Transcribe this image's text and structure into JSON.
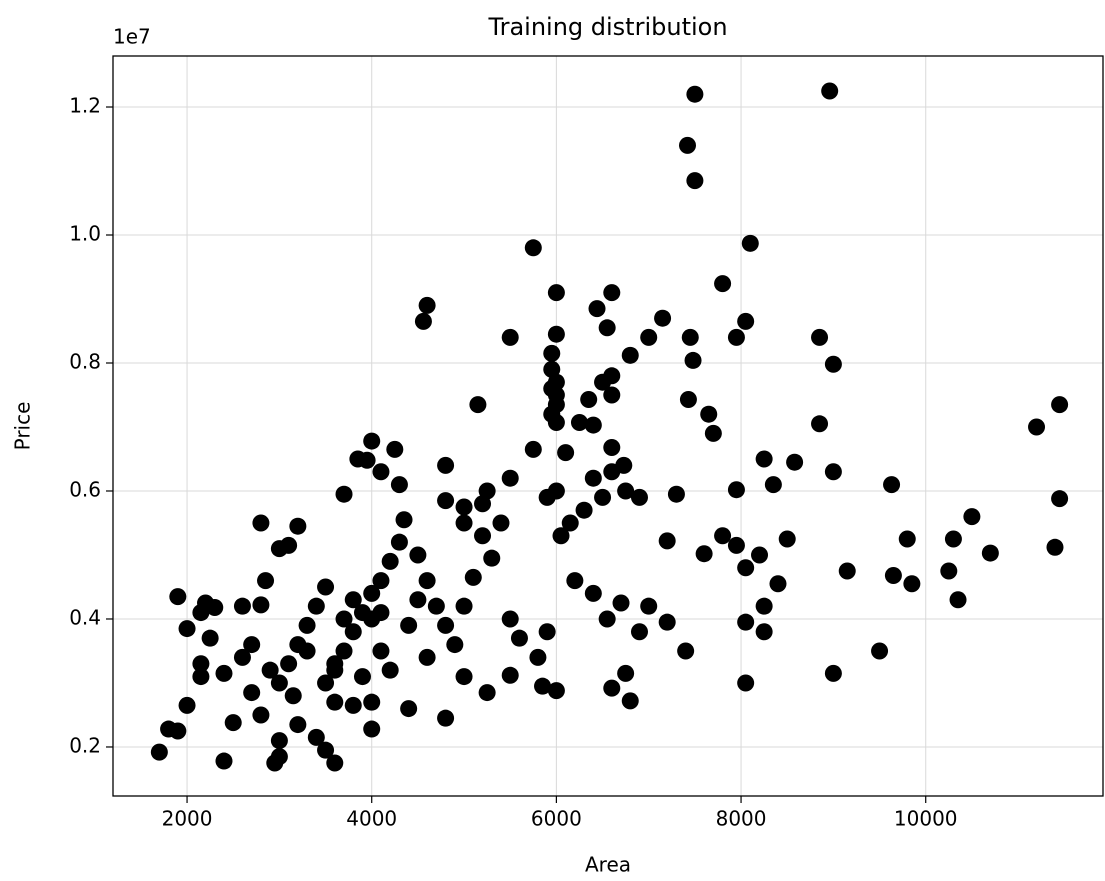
{
  "chart_data": {
    "type": "scatter",
    "title": "Training distribution",
    "x_label": "Area",
    "y_label": "Price",
    "y_offset_label": "1e7",
    "color": "#000000",
    "grid": true,
    "xlim": [
      1198,
      11920
    ],
    "ylim": [
      1234000,
      12797000
    ],
    "xticks": [
      2000,
      4000,
      6000,
      8000,
      10000
    ],
    "yticks": [
      {
        "value": 2000000,
        "label": "0.2"
      },
      {
        "value": 4000000,
        "label": "0.4"
      },
      {
        "value": 6000000,
        "label": "0.6"
      },
      {
        "value": 8000000,
        "label": "0.8"
      },
      {
        "value": 10000000,
        "label": "1.0"
      },
      {
        "value": 12000000,
        "label": "1.2"
      }
    ],
    "x": [
      7500,
      8960,
      7420,
      7500,
      5750,
      8100,
      7800,
      6000,
      6600,
      4600,
      4560,
      6440,
      6550,
      7150,
      8050,
      5500,
      6000,
      7000,
      7450,
      7950,
      8850,
      6800,
      5950,
      7480,
      9000,
      5950,
      6500,
      6600,
      6000,
      5950,
      6000,
      6600,
      6350,
      7430,
      5150,
      6000,
      11450,
      5950,
      7650,
      6000,
      6250,
      8850,
      6400,
      11200,
      7700,
      4000,
      3850,
      3950,
      4250,
      5750,
      6600,
      6100,
      8250,
      8580,
      6730,
      4800,
      4100,
      9000,
      4300,
      8350,
      9630,
      3700,
      6000,
      6750,
      7950,
      5500,
      6400,
      6600,
      5250,
      11450,
      4800,
      5000,
      5200,
      7300,
      6900,
      4350,
      2800,
      3200,
      3100,
      3000,
      7200,
      8500,
      9800,
      10300,
      10500,
      11400,
      10700,
      7600,
      7800,
      8200,
      8050,
      9000,
      9500,
      9150,
      9650,
      9850,
      10250,
      10350,
      8050,
      8050,
      8250,
      8250,
      8400,
      7950,
      7400,
      6800,
      6600,
      6750,
      6000,
      5850,
      7000,
      7200,
      6900,
      6550,
      6700,
      6400,
      6200,
      5500,
      5250,
      5000,
      4800,
      4400,
      4000,
      3600,
      3500,
      3000,
      2950,
      2400,
      1700,
      1800,
      1900,
      2000,
      2500,
      1900,
      2000,
      2150,
      2200,
      2300,
      2150,
      2150,
      2250,
      2600,
      2800,
      2850,
      2400,
      2600,
      2700,
      2800,
      3000,
      3200,
      3400,
      3600,
      3800,
      4000,
      3000,
      3100,
      3200,
      3300,
      3400,
      3500,
      3600,
      3700,
      3800,
      3900,
      4000,
      4100,
      4200,
      4300,
      4500,
      4600,
      4700,
      4800,
      4900,
      5000,
      5100,
      5300,
      5400,
      5500,
      5600,
      5800,
      5900,
      6050,
      6150,
      6300,
      6500,
      3500,
      3600,
      3700,
      3800,
      3900,
      4100,
      4200,
      4400,
      4500,
      4600,
      2900,
      3150,
      3300,
      2700,
      4000,
      4100,
      5900,
      5000,
      5200
    ],
    "y": [
      12200000,
      12250000,
      11400000,
      10850000,
      9800000,
      9870000,
      9240000,
      9100000,
      9100000,
      8900000,
      8650000,
      8850000,
      8550000,
      8700000,
      8650000,
      8400000,
      8450000,
      8400000,
      8400000,
      8400000,
      8400000,
      8120000,
      8150000,
      8040000,
      7980000,
      7900000,
      7700000,
      7800000,
      7700000,
      7600000,
      7500000,
      7500000,
      7430000,
      7430000,
      7350000,
      7350000,
      7350000,
      7200000,
      7200000,
      7070000,
      7070000,
      7050000,
      7030000,
      7000000,
      6900000,
      6780000,
      6500000,
      6480000,
      6650000,
      6650000,
      6680000,
      6600000,
      6500000,
      6450000,
      6400000,
      6400000,
      6300000,
      6300000,
      6100000,
      6100000,
      6100000,
      5950000,
      6000000,
      6000000,
      6020000,
      6200000,
      6200000,
      6300000,
      6000000,
      5880000,
      5850000,
      5750000,
      5800000,
      5950000,
      5900000,
      5550000,
      5500000,
      5450000,
      5150000,
      5100000,
      5220000,
      5250000,
      5250000,
      5250000,
      5600000,
      5120000,
      5030000,
      5020000,
      5300000,
      5000000,
      4800000,
      3150000,
      3500000,
      4750000,
      4680000,
      4550000,
      4750000,
      4300000,
      3000000,
      3950000,
      3800000,
      4200000,
      4550000,
      5150000,
      3500000,
      2720000,
      2920000,
      3150000,
      2880000,
      2950000,
      4200000,
      3950000,
      3800000,
      4000000,
      4250000,
      4400000,
      4600000,
      3120000,
      2850000,
      3100000,
      2450000,
      2600000,
      2280000,
      1750000,
      1950000,
      1850000,
      1750000,
      1780000,
      1920000,
      2280000,
      2250000,
      2650000,
      2380000,
      4350000,
      3850000,
      4100000,
      4250000,
      4180000,
      3300000,
      3100000,
      3700000,
      4200000,
      4220000,
      4600000,
      3150000,
      3400000,
      2850000,
      2500000,
      2100000,
      2350000,
      2150000,
      2700000,
      2650000,
      2700000,
      3000000,
      3300000,
      3600000,
      3900000,
      4200000,
      4500000,
      3200000,
      3500000,
      3800000,
      4100000,
      4400000,
      4600000,
      4900000,
      5200000,
      5000000,
      4600000,
      4200000,
      3900000,
      3600000,
      4200000,
      4650000,
      4950000,
      5500000,
      4000000,
      3700000,
      3400000,
      3800000,
      5300000,
      5500000,
      5700000,
      5900000,
      3000000,
      3300000,
      4000000,
      4300000,
      3100000,
      3500000,
      3200000,
      3900000,
      4300000,
      3400000,
      3200000,
      2800000,
      3500000,
      3600000,
      4000000,
      4100000,
      5900000,
      5500000,
      5300000
    ]
  }
}
